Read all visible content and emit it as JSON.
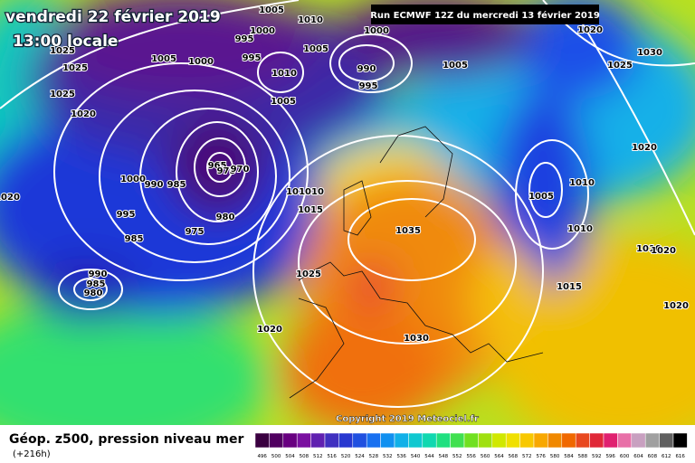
{
  "header": {
    "date": "vendredi 22 février 2019",
    "time": "13:00 locale",
    "run": "Run ECMWF 12Z du mercredi 13 février 2019"
  },
  "footer": {
    "title": "Géop. z500, pression niveau mer",
    "lead": "(+216h)",
    "copyright": "Copyright 2019 Meteociel.fr"
  },
  "colorbar": {
    "labels": [
      496,
      500,
      504,
      508,
      512,
      516,
      520,
      524,
      528,
      532,
      536,
      540,
      544,
      548,
      552,
      556,
      560,
      564,
      568,
      572,
      576,
      580,
      584,
      588,
      592,
      596,
      600,
      604,
      608,
      612,
      616
    ]
  },
  "isobar_labels": [
    "1005",
    "1010",
    "1000",
    "995",
    "1005",
    "1000",
    "990",
    "995",
    "1005",
    "1020",
    "1025",
    "1030",
    "1025",
    "1025",
    "1025",
    "1020",
    "1005",
    "1000",
    "995",
    "1010",
    "1005",
    "965",
    "975",
    "970",
    "1000",
    "990",
    "985",
    "995",
    "980",
    "975",
    "985",
    "990",
    "985",
    "980",
    "1020",
    "1010",
    "1010",
    "1015",
    "1035",
    "1025",
    "1020",
    "1030",
    "1005",
    "1010",
    "1010",
    "1010",
    "1020",
    "1015",
    "1020",
    "1020"
  ]
}
